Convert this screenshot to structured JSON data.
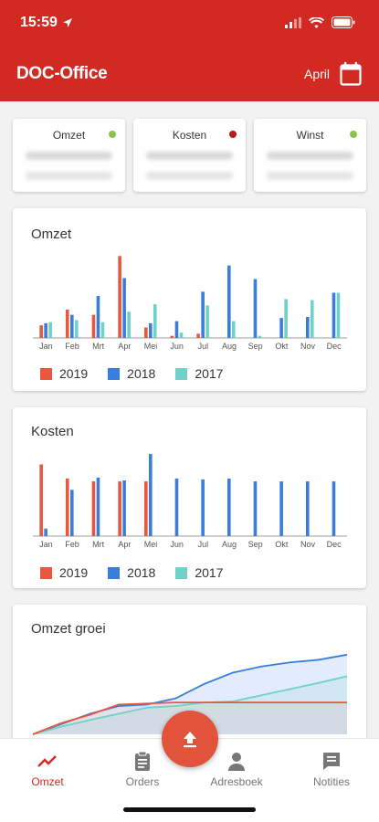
{
  "status_bar": {
    "time": "15:59"
  },
  "header": {
    "title": "DOC-Office",
    "month": "April"
  },
  "kpis": [
    {
      "label": "Omzet",
      "color": "#8bc34a"
    },
    {
      "label": "Kosten",
      "color": "#b71c1c"
    },
    {
      "label": "Winst",
      "color": "#8bc34a"
    }
  ],
  "colors": {
    "y2019": "#e9573f",
    "y2018": "#3b7ddd",
    "y2017": "#70d1c8",
    "accent": "#d22a22"
  },
  "chart_data": [
    {
      "type": "bar",
      "title": "Omzet",
      "categories": [
        "Jan",
        "Feb",
        "Mrt",
        "Apr",
        "Mei",
        "Jun",
        "Jul",
        "Aug",
        "Sep",
        "Okt",
        "Nov",
        "Dec"
      ],
      "series": [
        {
          "name": "2019",
          "values": [
            12,
            27,
            22,
            78,
            10,
            2,
            4,
            0,
            0,
            0,
            0,
            0
          ]
        },
        {
          "name": "2018",
          "values": [
            14,
            22,
            40,
            57,
            14,
            16,
            44,
            69,
            56,
            19,
            20,
            43
          ]
        },
        {
          "name": "2017",
          "values": [
            15,
            17,
            15,
            25,
            32,
            5,
            31,
            16,
            2,
            37,
            36,
            43
          ]
        }
      ],
      "ylim": [
        0,
        80
      ]
    },
    {
      "type": "bar",
      "title": "Kosten",
      "categories": [
        "Jan",
        "Feb",
        "Mrt",
        "Apr",
        "Mei",
        "Jun",
        "Jul",
        "Aug",
        "Sep",
        "Okt",
        "Nov",
        "Dec"
      ],
      "series": [
        {
          "name": "2019",
          "values": [
            76,
            61,
            58,
            58,
            58,
            0,
            0,
            0,
            0,
            0,
            0,
            0
          ]
        },
        {
          "name": "2018",
          "values": [
            8,
            49,
            62,
            59,
            87,
            61,
            60,
            61,
            58,
            58,
            58,
            58
          ]
        },
        {
          "name": "2017",
          "values": [
            0,
            0,
            0,
            0,
            0,
            0,
            0,
            0,
            0,
            0,
            0,
            0
          ]
        }
      ],
      "ylim": [
        0,
        90
      ]
    },
    {
      "type": "area",
      "title": "Omzet groei",
      "x": [
        0,
        1,
        2,
        3,
        4,
        5,
        6,
        7,
        8,
        9,
        10,
        11
      ],
      "series": [
        {
          "name": "2019",
          "values": [
            0,
            22,
            38,
            58,
            60,
            62,
            62,
            62,
            62,
            62,
            62,
            62
          ]
        },
        {
          "name": "2018",
          "values": [
            0,
            20,
            40,
            55,
            58,
            70,
            98,
            120,
            132,
            140,
            145,
            155
          ]
        },
        {
          "name": "2017",
          "values": [
            0,
            15,
            28,
            40,
            52,
            55,
            62,
            64,
            76,
            88,
            100,
            113
          ]
        }
      ]
    }
  ],
  "nav": [
    {
      "label": "Omzet"
    },
    {
      "label": "Orders"
    },
    {
      "label": "Adresboek"
    },
    {
      "label": "Notities"
    }
  ]
}
